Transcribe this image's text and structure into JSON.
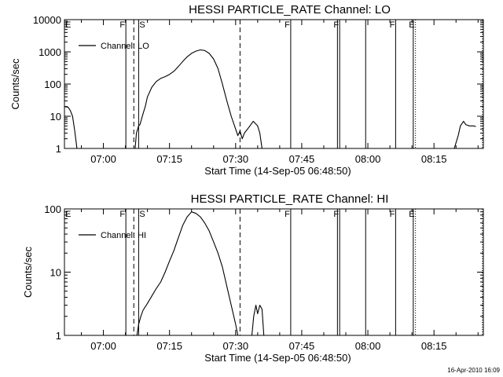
{
  "footer": {
    "timestamp": "16-Apr-2010 16:09"
  },
  "chart_data": [
    {
      "type": "line",
      "title": "HESSI PARTICLE_RATE Channel: LO",
      "xlabel": "Start Time (14-Sep-05 06:48:50)",
      "ylabel": "Counts/sec",
      "yscale": "log",
      "ylim": [
        1,
        10000
      ],
      "xlim_minutes": [
        -8.833,
        86.2
      ],
      "xticks": [
        {
          "minute": 0,
          "label": "07:00"
        },
        {
          "minute": 15,
          "label": "07:15"
        },
        {
          "minute": 30,
          "label": "07:30"
        },
        {
          "minute": 45,
          "label": "07:45"
        },
        {
          "minute": 60,
          "label": "08:00"
        },
        {
          "minute": 75,
          "label": "08:15"
        }
      ],
      "yticks": [
        {
          "value": 1,
          "label": "1"
        },
        {
          "value": 10,
          "label": "10"
        },
        {
          "value": 100,
          "label": "100"
        },
        {
          "value": 1000,
          "label": "1000"
        },
        {
          "value": 10000,
          "label": "10000"
        }
      ],
      "legend": {
        "label": "Channel: LO",
        "position": "top-left"
      },
      "series": [
        {
          "segments": [
            [
              [
                -8.8,
                20
              ],
              [
                -8.0,
                19
              ],
              [
                -7.5,
                15
              ],
              [
                -7.0,
                10
              ],
              [
                -6.5,
                3.5
              ],
              [
                -6.0,
                1
              ]
            ],
            [
              [
                7.2,
                1
              ],
              [
                7.5,
                3
              ],
              [
                8.0,
                5
              ],
              [
                8.3,
                5.5
              ],
              [
                9.0,
                12
              ],
              [
                9.5,
                20
              ],
              [
                10,
                40
              ],
              [
                11,
                80
              ],
              [
                12,
                120
              ],
              [
                13,
                150
              ],
              [
                14,
                170
              ],
              [
                15,
                200
              ],
              [
                16,
                250
              ],
              [
                17,
                350
              ],
              [
                18,
                500
              ],
              [
                19,
                700
              ],
              [
                20,
                900
              ],
              [
                21,
                1050
              ],
              [
                22,
                1150
              ],
              [
                23,
                1100
              ],
              [
                24,
                900
              ],
              [
                25,
                600
              ],
              [
                26,
                300
              ],
              [
                27,
                100
              ],
              [
                28,
                30
              ],
              [
                29,
                10
              ],
              [
                30,
                4
              ],
              [
                30.5,
                2.5
              ],
              [
                31,
                3.5
              ],
              [
                31.5,
                2
              ],
              [
                32,
                3
              ],
              [
                33,
                4.5
              ],
              [
                34,
                7
              ],
              [
                35,
                5
              ],
              [
                35.5,
                3
              ],
              [
                36,
                1
              ]
            ],
            [
              [
                79.6,
                1
              ],
              [
                80.5,
                2.5
              ],
              [
                81,
                5
              ],
              [
                81.7,
                7
              ],
              [
                82.2,
                5.5
              ],
              [
                83,
                5
              ],
              [
                84,
                5
              ],
              [
                84.5,
                4.8
              ]
            ]
          ]
        }
      ],
      "markers": [
        {
          "minute": 5.1,
          "style": "solid",
          "letter": "F"
        },
        {
          "minute": 6.9,
          "style": "dashed",
          "letter": ""
        },
        {
          "minute": 8.0,
          "style": "solid",
          "letter": "S"
        },
        {
          "minute": 31.0,
          "style": "dashed",
          "letter": ""
        },
        {
          "minute": 42.5,
          "style": "solid",
          "letter": "F"
        },
        {
          "minute": 53.1,
          "style": "solid",
          "letter": ""
        },
        {
          "minute": 53.6,
          "style": "solid",
          "letter": "F"
        },
        {
          "minute": 59.5,
          "style": "solid",
          "letter": ""
        },
        {
          "minute": 66.3,
          "style": "solid",
          "letter": "F"
        },
        {
          "minute": 70.3,
          "style": "solid",
          "letter": ""
        },
        {
          "minute": 70.8,
          "style": "dotted",
          "letter": "E"
        },
        {
          "minute": 86.0,
          "style": "dotted",
          "letter": ""
        }
      ],
      "corner_letter": "E"
    },
    {
      "type": "line",
      "title": "HESSI PARTICLE_RATE Channel: HI",
      "xlabel": "Start Time (14-Sep-05 06:48:50)",
      "ylabel": "Counts/sec",
      "yscale": "log",
      "ylim": [
        1,
        100
      ],
      "xlim_minutes": [
        -8.833,
        86.2
      ],
      "xticks": [
        {
          "minute": 0,
          "label": "07:00"
        },
        {
          "minute": 15,
          "label": "07:15"
        },
        {
          "minute": 30,
          "label": "07:30"
        },
        {
          "minute": 45,
          "label": "07:45"
        },
        {
          "minute": 60,
          "label": "08:00"
        },
        {
          "minute": 75,
          "label": "08:15"
        }
      ],
      "yticks": [
        {
          "value": 1,
          "label": "1"
        },
        {
          "value": 10,
          "label": "10"
        },
        {
          "value": 100,
          "label": "100"
        }
      ],
      "legend": {
        "label": "Channel: HI",
        "position": "top-left"
      },
      "series": [
        {
          "segments": [
            [
              [
                7.6,
                1
              ],
              [
                8.0,
                1.5
              ],
              [
                8.5,
                2
              ],
              [
                9,
                2.5
              ],
              [
                10,
                3.2
              ],
              [
                11,
                4.2
              ],
              [
                12,
                5.5
              ],
              [
                13,
                7
              ],
              [
                14,
                10
              ],
              [
                15,
                15
              ],
              [
                16,
                22
              ],
              [
                17,
                35
              ],
              [
                18,
                55
              ],
              [
                19,
                75
              ],
              [
                20,
                90
              ],
              [
                21,
                85
              ],
              [
                22,
                75
              ],
              [
                23,
                60
              ],
              [
                24,
                45
              ],
              [
                25,
                30
              ],
              [
                26,
                20
              ],
              [
                27,
                12
              ],
              [
                28,
                6
              ],
              [
                29,
                3
              ],
              [
                30,
                1.5
              ],
              [
                30.5,
                1
              ]
            ],
            [
              [
                33.7,
                1
              ],
              [
                34.1,
                2
              ],
              [
                34.6,
                3
              ],
              [
                35.0,
                2.2
              ],
              [
                35.5,
                3
              ],
              [
                36.0,
                2.6
              ],
              [
                36.4,
                1
              ]
            ]
          ]
        }
      ],
      "markers": [
        {
          "minute": 5.1,
          "style": "solid",
          "letter": "F"
        },
        {
          "minute": 6.9,
          "style": "dashed",
          "letter": ""
        },
        {
          "minute": 8.0,
          "style": "solid",
          "letter": "S"
        },
        {
          "minute": 31.0,
          "style": "dashed",
          "letter": ""
        },
        {
          "minute": 42.5,
          "style": "solid",
          "letter": "F"
        },
        {
          "minute": 53.1,
          "style": "solid",
          "letter": ""
        },
        {
          "minute": 53.6,
          "style": "solid",
          "letter": "F"
        },
        {
          "minute": 59.5,
          "style": "solid",
          "letter": ""
        },
        {
          "minute": 66.3,
          "style": "solid",
          "letter": "F"
        },
        {
          "minute": 70.3,
          "style": "solid",
          "letter": ""
        },
        {
          "minute": 70.8,
          "style": "dotted",
          "letter": "E"
        },
        {
          "minute": 86.0,
          "style": "dotted",
          "letter": ""
        }
      ],
      "corner_letter": "E"
    }
  ]
}
